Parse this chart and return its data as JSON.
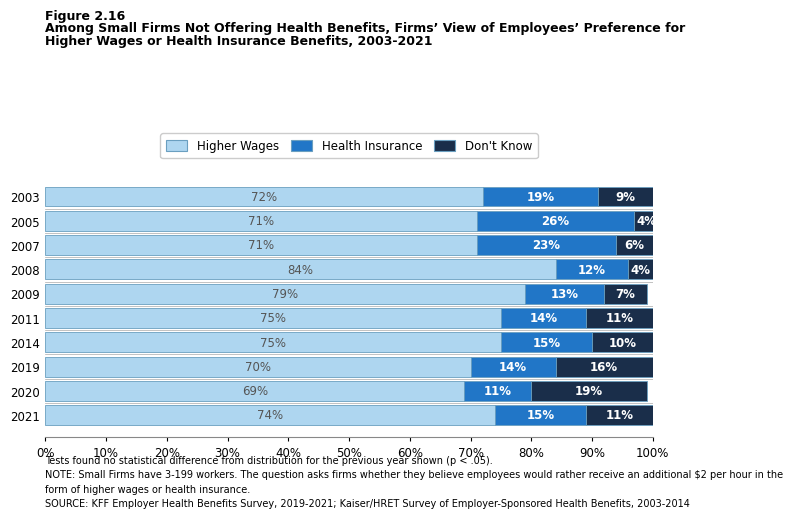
{
  "title_line1": "Figure 2.16",
  "title_line2": "Among Small Firms Not Offering Health Benefits, Firms’ View of Employees’ Preference for",
  "title_line3": "Higher Wages or Health Insurance Benefits, 2003-2021",
  "years": [
    "2003",
    "2005",
    "2007",
    "2008",
    "2009",
    "2011",
    "2014",
    "2019",
    "2020",
    "2021"
  ],
  "higher_wages": [
    72,
    71,
    71,
    84,
    79,
    75,
    75,
    70,
    69,
    74
  ],
  "health_insurance": [
    19,
    26,
    23,
    12,
    13,
    14,
    15,
    14,
    11,
    15
  ],
  "dont_know": [
    9,
    4,
    6,
    4,
    7,
    11,
    10,
    16,
    19,
    11
  ],
  "color_higher_wages": "#aed6f0",
  "color_health_insurance": "#2176c7",
  "color_dont_know": "#1a2e4a",
  "legend_labels": [
    "Higher Wages",
    "Health Insurance",
    "Don't Know"
  ],
  "xlabel_ticks": [
    0,
    10,
    20,
    30,
    40,
    50,
    60,
    70,
    80,
    90,
    100
  ],
  "footnote1": "Tests found no statistical difference from distribution for the previous year shown (p < .05).",
  "footnote2": "NOTE: Small Firms have 3-199 workers. The question asks firms whether they believe employees would rather receive an additional $2 per hour in the",
  "footnote3": "form of higher wages or health insurance.",
  "footnote4": "SOURCE: KFF Employer Health Benefits Survey, 2019-2021; Kaiser/HRET Survey of Employer-Sponsored Health Benefits, 2003-2014"
}
